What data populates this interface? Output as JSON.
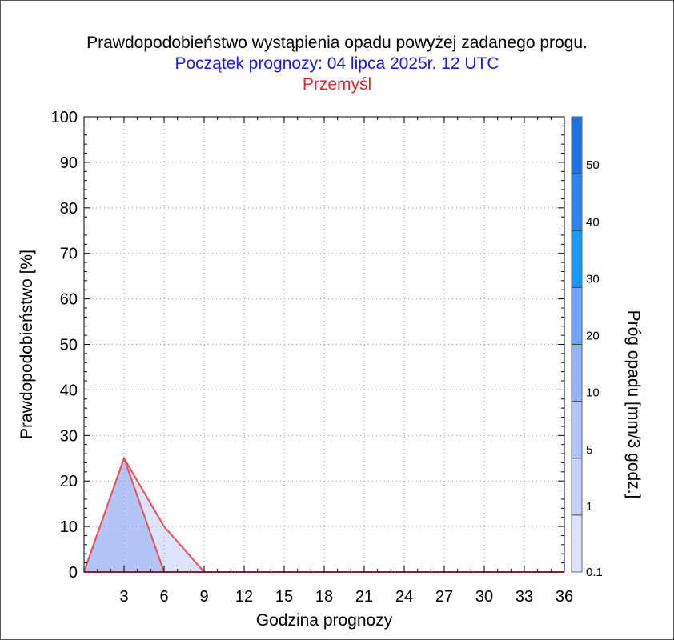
{
  "title": "Prawdopodobieństwo wystąpienia opadu powyżej zadanego progu.",
  "subtitle": "Początek prognozy: 04 lipca 2025r. 12 UTC",
  "location": "Przemyśl",
  "colors": {
    "subtitle": "#1c1cd6",
    "location": "#e3232b",
    "outline": "#e8505a"
  },
  "chart_data": {
    "type": "area",
    "xlabel": "Godzina prognozy",
    "ylabel": "Prawdopodobieństwo [%]",
    "xlim": [
      0,
      36
    ],
    "ylim": [
      0,
      100
    ],
    "x_ticks": [
      "3",
      "6",
      "9",
      "12",
      "15",
      "18",
      "21",
      "24",
      "27",
      "30",
      "33",
      "36"
    ],
    "y_ticks": [
      "0",
      "10",
      "20",
      "30",
      "40",
      "50",
      "60",
      "70",
      "80",
      "90",
      "100"
    ],
    "x": [
      0,
      3,
      6,
      9,
      12,
      15,
      18,
      21,
      24,
      27,
      30,
      33,
      36
    ],
    "series": [
      {
        "name": "0.1",
        "color": "#dde3fb",
        "values": [
          0,
          25,
          10,
          0,
          0,
          0,
          0,
          0,
          0,
          0,
          0,
          0,
          0
        ]
      },
      {
        "name": "1",
        "color": "#b4c4f6",
        "values": [
          0,
          25,
          0,
          0,
          0,
          0,
          0,
          0,
          0,
          0,
          0,
          0,
          0
        ]
      }
    ],
    "colorbar": {
      "label": "Próg opadu [mm/3 godz.]",
      "tick_labels": [
        "0.1",
        "1",
        "5",
        "10",
        "20",
        "30",
        "40",
        "50"
      ],
      "colors": [
        "#dde3fb",
        "#c6d1f8",
        "#b4c4f6",
        "#95b3f8",
        "#6fa4f6",
        "#1f98f4",
        "#2e85ea",
        "#1f73e0",
        "#115ed1",
        "#0640ae"
      ]
    }
  }
}
